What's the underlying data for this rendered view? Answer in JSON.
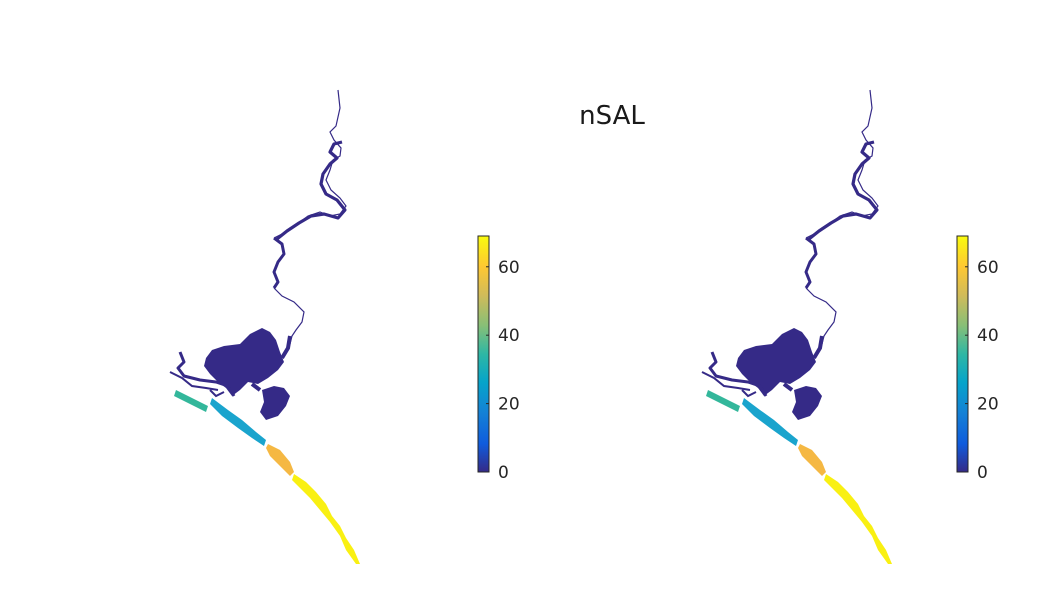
{
  "figure": {
    "title": "nSAL"
  },
  "chart_data": {
    "type": "heatmap",
    "title": "nSAL",
    "panels": [
      {
        "name": "left-map",
        "colorbar": {
          "range": [
            0,
            69
          ],
          "ticks": [
            0,
            20,
            40,
            60
          ],
          "tick_labels": [
            "0",
            "20",
            "40",
            "60"
          ],
          "colormap": "parula"
        },
        "regions": [
          {
            "region": "river-and-lagoon",
            "value": 0,
            "color": "#352a87"
          },
          {
            "region": "inlet-block",
            "value": 35,
            "color": "#33b79b"
          },
          {
            "region": "coast-segment-1",
            "value": 24,
            "color": "#1aa4cd"
          },
          {
            "region": "coast-segment-2",
            "value": 57,
            "color": "#f5b843"
          },
          {
            "region": "coast-segment-3",
            "value": 67,
            "color": "#f9f012"
          }
        ]
      },
      {
        "name": "right-map",
        "colorbar": {
          "range": [
            0,
            69
          ],
          "ticks": [
            0,
            20,
            40,
            60
          ],
          "tick_labels": [
            "0",
            "20",
            "40",
            "60"
          ],
          "colormap": "parula"
        },
        "regions": [
          {
            "region": "river-and-lagoon",
            "value": 0,
            "color": "#352a87"
          },
          {
            "region": "inlet-block",
            "value": 35,
            "color": "#33b79b"
          },
          {
            "region": "coast-segment-1",
            "value": 24,
            "color": "#1aa4cd"
          },
          {
            "region": "coast-segment-2",
            "value": 57,
            "color": "#f5b843"
          },
          {
            "region": "coast-segment-3",
            "value": 67,
            "color": "#f9f012"
          }
        ]
      }
    ]
  }
}
